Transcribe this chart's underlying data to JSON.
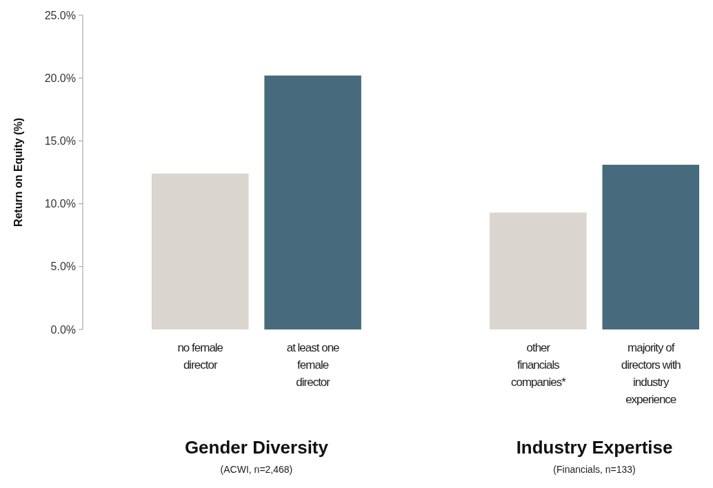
{
  "chart_data": {
    "type": "bar",
    "ylabel": "Return on Equity (%)",
    "categories": [
      "no female director",
      "at least one female director",
      null,
      "other financials companies*",
      "majority of directors with industry experience"
    ],
    "values": [
      12.4,
      20.2,
      null,
      9.3,
      13.1
    ],
    "colors": [
      "#dbd5cf",
      "#476b7c",
      null,
      "#dbd5cf",
      "#476b7c"
    ],
    "ylim": [
      0,
      25
    ],
    "yticks": [
      {
        "value": 0,
        "label": "0.0%"
      },
      {
        "value": 5,
        "label": "5.0%"
      },
      {
        "value": 10,
        "label": "10.0%"
      },
      {
        "value": 15,
        "label": "15.0%"
      },
      {
        "value": 20,
        "label": "20.0%"
      },
      {
        "value": 25,
        "label": "25.0%"
      }
    ],
    "grid": false,
    "annotations": [
      "Gender Diversity",
      "(ACWI, n=2,468)",
      "Industry Expertise",
      "(Financials, n=133)"
    ]
  }
}
